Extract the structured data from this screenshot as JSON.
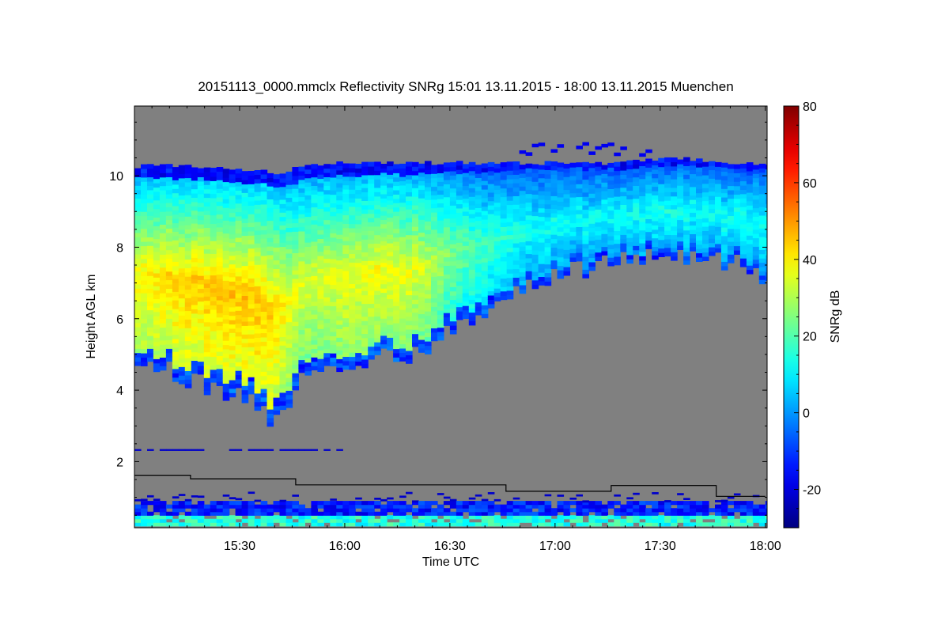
{
  "chart_data": {
    "type": "heatmap",
    "title": "20151113_0000.mmclx Reflectivity SNRg   15:01 13.11.2015 - 18:00 13.11.2015 Muenchen",
    "xlabel": "Time UTC",
    "ylabel": "Height AGL km",
    "colorbar_label": "SNRg dB",
    "x_range": [
      "15:01",
      "18:01"
    ],
    "x_ticks": [
      "15:30",
      "16:00",
      "16:30",
      "17:00",
      "17:30",
      "18:00"
    ],
    "x_ticks_minutes": [
      30,
      60,
      90,
      120,
      150,
      180
    ],
    "ylim": [
      0.15,
      11.95
    ],
    "y_ticks": [
      2,
      4,
      6,
      8,
      10
    ],
    "y_tick_labels": [
      "2",
      "4",
      "6",
      "8",
      "10"
    ],
    "clim": [
      -30,
      80
    ],
    "colorbar_ticks": [
      -20,
      0,
      20,
      40,
      60,
      80
    ],
    "colorbar_tick_labels": [
      "-20",
      "0",
      "20",
      "40",
      "60",
      "80"
    ],
    "colormap": "jet",
    "no_data_color": "#808080",
    "boundary_line": {
      "color": "#000000",
      "time_minutes": [
        0,
        16,
        16,
        46,
        46,
        106,
        106,
        136,
        136,
        166,
        166,
        180
      ],
      "height_km": [
        1.62,
        1.62,
        1.52,
        1.52,
        1.35,
        1.35,
        1.17,
        1.17,
        1.33,
        1.33,
        1.03,
        1.03
      ]
    },
    "cloud_layer": {
      "time_minutes": [
        0,
        10,
        20,
        30,
        36,
        40,
        45,
        50,
        60,
        70,
        80,
        90,
        100,
        110,
        120,
        130,
        140,
        150,
        160,
        170,
        180
      ],
      "top_km": [
        10.2,
        10.25,
        10.2,
        10.1,
        10.1,
        10.0,
        10.1,
        10.25,
        10.3,
        10.3,
        10.3,
        10.3,
        10.3,
        10.3,
        10.3,
        10.3,
        10.3,
        10.4,
        10.4,
        10.3,
        10.3
      ],
      "base_km": [
        4.9,
        4.5,
        4.0,
        3.8,
        3.3,
        3.1,
        3.8,
        4.4,
        4.6,
        4.8,
        4.9,
        5.5,
        6.2,
        6.8,
        7.1,
        7.3,
        7.5,
        7.7,
        7.6,
        7.5,
        7.0
      ],
      "peak_snr_db": [
        38,
        42,
        44,
        45,
        45,
        43,
        36,
        34,
        36,
        37,
        36,
        25,
        18,
        13,
        12,
        11,
        12,
        13,
        12,
        12,
        12
      ]
    }
  }
}
